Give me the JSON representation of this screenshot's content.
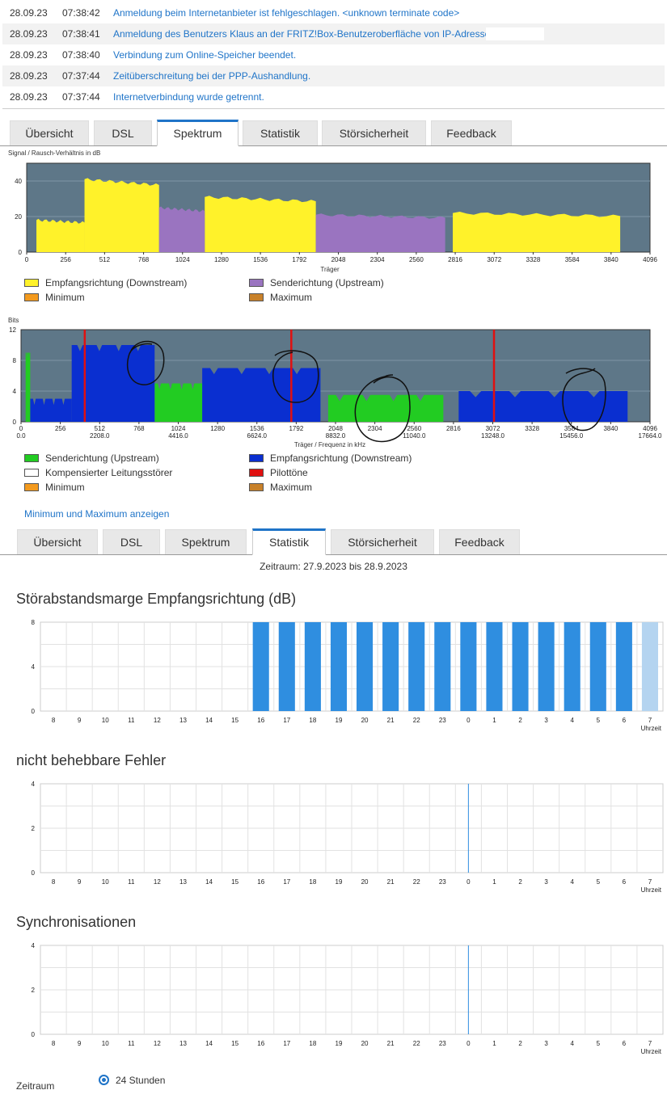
{
  "event_log": [
    {
      "date": "28.09.23",
      "time": "07:38:42",
      "message": "Anmeldung beim Internetanbieter ist fehlgeschlagen. <unknown terminate code>"
    },
    {
      "date": "28.09.23",
      "time": "07:38:41",
      "message": "Anmeldung des Benutzers Klaus an der FRITZ!Box-Benutzeroberfläche von IP-Adresse"
    },
    {
      "date": "28.09.23",
      "time": "07:38:40",
      "message": "Verbindung zum Online-Speicher beendet."
    },
    {
      "date": "28.09.23",
      "time": "07:37:44",
      "message": "Zeitüberschreitung bei der PPP-Aushandlung."
    },
    {
      "date": "28.09.23",
      "time": "07:37:44",
      "message": "Internetverbindung wurde getrennt."
    }
  ],
  "tabs_spectrum": {
    "items": [
      "Übersicht",
      "DSL",
      "Spektrum",
      "Statistik",
      "Störsicherheit",
      "Feedback"
    ],
    "active": "Spektrum"
  },
  "tabs_statistics": {
    "items": [
      "Übersicht",
      "DSL",
      "Spektrum",
      "Statistik",
      "Störsicherheit",
      "Feedback"
    ],
    "active": "Statistik"
  },
  "snr_chart": {
    "title": "Signal / Rausch-Verhältnis in dB",
    "xlabel": "Träger",
    "x_ticks": [
      "0",
      "256",
      "512",
      "768",
      "1024",
      "1280",
      "1536",
      "1792",
      "2048",
      "2304",
      "2560",
      "2816",
      "3072",
      "3328",
      "3584",
      "3840",
      "4096"
    ],
    "y_ticks": [
      "0",
      "20",
      "40"
    ],
    "legend": [
      {
        "label": "Empfangsrichtung (Downstream)",
        "color": "#fff22a"
      },
      {
        "label": "Senderichtung (Upstream)",
        "color": "#9a74c0"
      },
      {
        "label": "Minimum",
        "color": "#f39a1e"
      },
      {
        "label": "Maximum",
        "color": "#c8812a"
      }
    ]
  },
  "bits_chart": {
    "title": "Bits",
    "xlabel": "Träger / Frequenz in kHz",
    "x_ticks": [
      "0",
      "256",
      "512",
      "768",
      "1024",
      "1280",
      "1536",
      "1792",
      "2048",
      "2304",
      "2560",
      "2816",
      "3072",
      "3328",
      "3584",
      "3840",
      "4096"
    ],
    "freq_ticks": [
      "0.0",
      "2208.0",
      "4416.0",
      "6624.0",
      "8832.0",
      "11040.0",
      "13248.0",
      "15456.0",
      "17664.0"
    ],
    "y_ticks": [
      "0",
      "4",
      "8",
      "12"
    ],
    "legend": [
      {
        "label": "Senderichtung (Upstream)",
        "color": "#22cc22"
      },
      {
        "label": "Empfangsrichtung (Downstream)",
        "color": "#0a2fd0"
      },
      {
        "label": "Kompensierter Leitungsstörer",
        "color": "#ffffff"
      },
      {
        "label": "Pilottöne",
        "color": "#e01010"
      },
      {
        "label": "Minimum",
        "color": "#f39a1e"
      },
      {
        "label": "Maximum",
        "color": "#c8812a"
      }
    ]
  },
  "show_minmax_link": "Minimum und Maximum anzeigen",
  "period_text": "Zeitraum: 27.9.2023 bis 28.9.2023",
  "stat_charts": [
    {
      "title": "Störabstandsmarge Empfangsrichtung (dB)",
      "y_ticks": [
        "0",
        "4",
        "8"
      ],
      "x_unit": "Uhrzeit",
      "hours": [
        "8",
        "9",
        "10",
        "11",
        "12",
        "13",
        "14",
        "15",
        "16",
        "17",
        "18",
        "19",
        "20",
        "21",
        "22",
        "23",
        "0",
        "1",
        "2",
        "3",
        "4",
        "5",
        "6",
        "7"
      ],
      "values": [
        0,
        0,
        0,
        0,
        0,
        0,
        0,
        0,
        8,
        8,
        8,
        8,
        8,
        8,
        8,
        8,
        8,
        8,
        8,
        8,
        8,
        8,
        8,
        8
      ]
    },
    {
      "title": "nicht behebbare Fehler",
      "y_ticks": [
        "0",
        "2",
        "4"
      ],
      "x_unit": "Uhrzeit",
      "hours": [
        "8",
        "9",
        "10",
        "11",
        "12",
        "13",
        "14",
        "15",
        "16",
        "17",
        "18",
        "19",
        "20",
        "21",
        "22",
        "23",
        "0",
        "1",
        "2",
        "3",
        "4",
        "5",
        "6",
        "7"
      ],
      "values": [
        0,
        0,
        0,
        0,
        0,
        0,
        0,
        0,
        0,
        0,
        0,
        0,
        0,
        0,
        0,
        0,
        0,
        0,
        0,
        0,
        0,
        0,
        0,
        0
      ]
    },
    {
      "title": "Synchronisationen",
      "y_ticks": [
        "0",
        "2",
        "4"
      ],
      "x_unit": "Uhrzeit",
      "hours": [
        "8",
        "9",
        "10",
        "11",
        "12",
        "13",
        "14",
        "15",
        "16",
        "17",
        "18",
        "19",
        "20",
        "21",
        "22",
        "23",
        "0",
        "1",
        "2",
        "3",
        "4",
        "5",
        "6",
        "7"
      ],
      "values": [
        0,
        0,
        0,
        0,
        0,
        0,
        0,
        0,
        0,
        0,
        0,
        0,
        0,
        0,
        0,
        0,
        0,
        0,
        0,
        0,
        0,
        0,
        0,
        0
      ]
    }
  ],
  "period_label": "Zeitraum",
  "period_option": "24 Stunden",
  "chart_data": [
    {
      "type": "area",
      "title": "Signal / Rausch-Verhältnis in dB",
      "xlabel": "Träger",
      "ylim": [
        0,
        50
      ],
      "xlim": [
        0,
        4096
      ],
      "series": [
        {
          "name": "Empfangsrichtung (Downstream)",
          "segments": [
            [
              64,
              380,
              18
            ],
            [
              380,
              870,
              41
            ],
            [
              1170,
              1900,
              31
            ],
            [
              2800,
              3900,
              22
            ]
          ]
        },
        {
          "name": "Senderichtung (Upstream)",
          "segments": [
            [
              870,
              1170,
              25
            ],
            [
              1900,
              2750,
              21
            ]
          ]
        }
      ]
    },
    {
      "type": "area",
      "title": "Bits",
      "xlabel": "Träger / Frequenz in kHz",
      "ylim": [
        0,
        12
      ],
      "xlim": [
        0,
        4096
      ],
      "series": [
        {
          "name": "Senderichtung (Upstream)",
          "segments": [
            [
              30,
              60,
              9
            ],
            [
              870,
              1180,
              5
            ],
            [
              2000,
              2750,
              3.5
            ]
          ]
        },
        {
          "name": "Empfangsrichtung (Downstream)",
          "segments": [
            [
              60,
              330,
              3
            ],
            [
              330,
              870,
              10
            ],
            [
              1180,
              1950,
              7
            ],
            [
              2850,
              3950,
              4
            ]
          ]
        },
        {
          "name": "Pilottöne",
          "x": [
            415,
            1760,
            3080
          ]
        }
      ]
    },
    {
      "type": "bar",
      "title": "Störabstandsmarge Empfangsrichtung (dB)",
      "xlabel": "Uhrzeit",
      "categories": [
        "8",
        "9",
        "10",
        "11",
        "12",
        "13",
        "14",
        "15",
        "16",
        "17",
        "18",
        "19",
        "20",
        "21",
        "22",
        "23",
        "0",
        "1",
        "2",
        "3",
        "4",
        "5",
        "6",
        "7"
      ],
      "values": [
        0,
        0,
        0,
        0,
        0,
        0,
        0,
        0,
        8,
        8,
        8,
        8,
        8,
        8,
        8,
        8,
        8,
        8,
        8,
        8,
        8,
        8,
        8,
        8
      ],
      "ylim": [
        0,
        8
      ]
    },
    {
      "type": "bar",
      "title": "nicht behebbare Fehler",
      "xlabel": "Uhrzeit",
      "categories": [
        "8",
        "9",
        "10",
        "11",
        "12",
        "13",
        "14",
        "15",
        "16",
        "17",
        "18",
        "19",
        "20",
        "21",
        "22",
        "23",
        "0",
        "1",
        "2",
        "3",
        "4",
        "5",
        "6",
        "7"
      ],
      "values": [
        0,
        0,
        0,
        0,
        0,
        0,
        0,
        0,
        0,
        0,
        0,
        0,
        0,
        0,
        0,
        0,
        0,
        0,
        0,
        0,
        0,
        0,
        0,
        0
      ],
      "ylim": [
        0,
        4
      ]
    },
    {
      "type": "bar",
      "title": "Synchronisationen",
      "xlabel": "Uhrzeit",
      "categories": [
        "8",
        "9",
        "10",
        "11",
        "12",
        "13",
        "14",
        "15",
        "16",
        "17",
        "18",
        "19",
        "20",
        "21",
        "22",
        "23",
        "0",
        "1",
        "2",
        "3",
        "4",
        "5",
        "6",
        "7"
      ],
      "values": [
        0,
        0,
        0,
        0,
        0,
        0,
        0,
        0,
        0,
        0,
        0,
        0,
        0,
        0,
        0,
        0,
        0,
        0,
        0,
        0,
        0,
        0,
        0,
        0
      ],
      "ylim": [
        0,
        4
      ]
    }
  ]
}
